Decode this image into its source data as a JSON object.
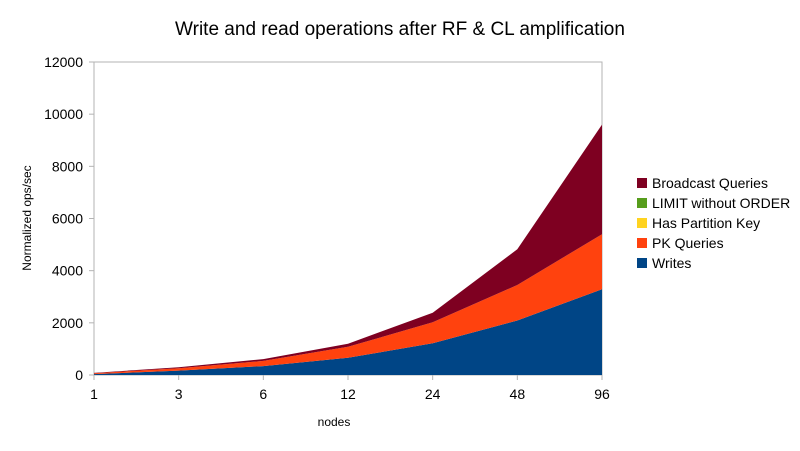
{
  "chart_data": {
    "type": "area",
    "stacked": true,
    "title": "Write and read operations after RF & CL amplification",
    "xlabel": "nodes",
    "ylabel": "Normalized ops/sec",
    "categories": [
      "1",
      "3",
      "6",
      "12",
      "24",
      "48",
      "96"
    ],
    "ylim": [
      0,
      12000
    ],
    "yticks": [
      0,
      2000,
      4000,
      6000,
      8000,
      10000,
      12000
    ],
    "grid": false,
    "legend_position": "right",
    "series": [
      {
        "name": "Writes",
        "color": "#004586",
        "values": [
          35,
          170,
          340,
          660,
          1220,
          2090,
          3290
        ]
      },
      {
        "name": "PK Queries",
        "color": "#ff420e",
        "values": [
          35,
          90,
          200,
          420,
          800,
          1360,
          2110
        ]
      },
      {
        "name": "Has Partition Key",
        "color": "#ffd320",
        "values": [
          0,
          0,
          0,
          0,
          0,
          0,
          0
        ]
      },
      {
        "name": "LIMIT without ORDER",
        "color": "#579d1c",
        "values": [
          0,
          0,
          0,
          0,
          0,
          0,
          0
        ]
      },
      {
        "name": "Broadcast Queries",
        "color": "#7e0021",
        "values": [
          10,
          40,
          70,
          120,
          370,
          1370,
          4200
        ]
      }
    ],
    "legend_order": [
      "Broadcast Queries",
      "LIMIT without ORDER",
      "Has Partition Key",
      "PK Queries",
      "Writes"
    ]
  }
}
